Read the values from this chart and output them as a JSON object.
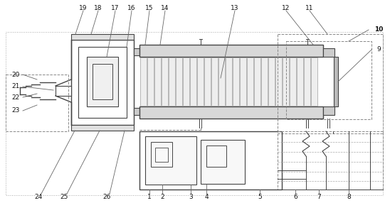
{
  "fig_width": 5.48,
  "fig_height": 2.86,
  "dpi": 100,
  "bg_color": "#ffffff",
  "line_color": "#444444",
  "label_color": "#111111",
  "label_fs": 6.5,
  "lw_main": 1.0,
  "lw_thin": 0.6
}
